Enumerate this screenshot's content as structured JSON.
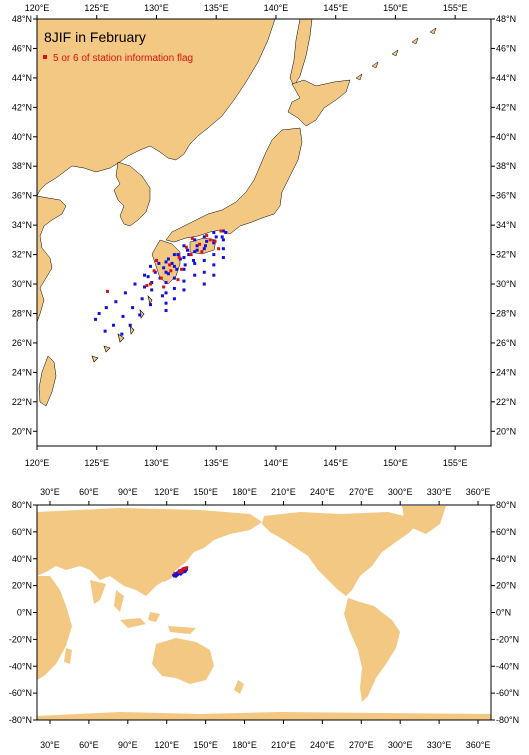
{
  "colors": {
    "land": "#f2c882",
    "ocean": "#ffffff",
    "blue_points": "#1010e0",
    "red_points": "#e01010",
    "frame": "#000000"
  },
  "regional_map": {
    "title": "8JIF in February",
    "legend_label": "5 or 6 of station information flag",
    "x_ticks": [
      "120°E",
      "125°E",
      "130°E",
      "135°E",
      "140°E",
      "145°E",
      "150°E",
      "155°E"
    ],
    "y_ticks_left": [
      "48°N",
      "46°N",
      "44°N",
      "42°N",
      "40°N",
      "38°N",
      "36°N",
      "34°N",
      "32°N",
      "30°N",
      "28°N",
      "26°N",
      "24°N",
      "22°N",
      "20°N"
    ],
    "lon_range": [
      120,
      158
    ],
    "lat_range": [
      19,
      48
    ]
  },
  "global_map": {
    "x_ticks": [
      "30°E",
      "60°E",
      "90°E",
      "120°E",
      "150°E",
      "180°E",
      "210°E",
      "240°E",
      "270°E",
      "300°E",
      "330°E",
      "360°E"
    ],
    "y_ticks": [
      "80°N",
      "60°N",
      "40°N",
      "20°N",
      "0°N",
      "-20°N",
      "-40°N",
      "-60°N",
      "-80°N"
    ],
    "lon_range": [
      20,
      370
    ],
    "lat_range": [
      -80,
      80
    ]
  },
  "chart_data": {
    "type": "scatter",
    "blue_tracks": [
      {
        "lon": [
          129.5,
          130.2,
          131.0,
          131.8,
          132.6,
          133.4,
          134.2,
          135.0,
          135.8
        ],
        "lat": [
          31.2,
          31.4,
          31.7,
          32.0,
          32.3,
          32.6,
          32.9,
          33.2,
          33.5
        ]
      },
      {
        "lon": [
          129.3,
          129.9,
          130.6,
          131.3,
          132.0,
          132.7,
          133.4,
          134.1,
          134.8,
          135.5
        ],
        "lat": [
          30.5,
          30.8,
          31.1,
          31.4,
          31.7,
          32.0,
          32.3,
          32.6,
          32.9,
          33.2
        ]
      },
      {
        "lon": [
          129.0,
          129.6,
          130.3,
          131.0,
          131.7,
          132.4,
          133.1
        ],
        "lat": [
          29.8,
          30.1,
          30.4,
          30.7,
          31.0,
          31.3,
          31.6
        ]
      },
      {
        "lon": [
          130.8,
          130.8,
          130.8,
          130.8,
          130.8,
          130.8
        ],
        "lat": [
          31.5,
          30.8,
          30.1,
          29.4,
          28.7,
          28.2
        ]
      },
      {
        "lon": [
          131.5,
          131.5,
          131.5,
          131.5,
          131.5
        ],
        "lat": [
          32.0,
          31.2,
          30.4,
          29.7,
          29.0
        ]
      },
      {
        "lon": [
          132.3,
          132.3,
          132.3,
          132.3,
          132.3
        ],
        "lat": [
          32.6,
          31.8,
          31.0,
          30.2,
          29.6
        ]
      },
      {
        "lon": [
          133.2,
          133.2,
          133.2,
          133.2
        ],
        "lat": [
          33.0,
          32.2,
          31.4,
          30.6
        ]
      },
      {
        "lon": [
          134.0,
          134.0,
          134.0,
          134.0,
          134.0
        ],
        "lat": [
          33.2,
          32.4,
          31.6,
          30.8,
          30.0
        ]
      },
      {
        "lon": [
          134.8,
          134.8,
          134.8,
          134.8,
          134.8
        ],
        "lat": [
          33.5,
          32.8,
          32.0,
          31.3,
          30.6
        ]
      },
      {
        "lon": [
          135.6,
          135.6,
          135.6,
          135.6
        ],
        "lat": [
          33.6,
          33.0,
          32.4,
          31.8
        ]
      },
      {
        "lon": [
          129.0,
          128.2,
          127.4,
          126.6,
          125.8,
          125.2,
          124.9
        ],
        "lat": [
          30.6,
          30.0,
          29.4,
          28.8,
          28.4,
          28.0,
          27.6
        ]
      },
      {
        "lon": [
          129.6,
          128.8,
          128.0,
          127.2,
          126.4,
          125.7
        ],
        "lat": [
          29.6,
          29.0,
          28.4,
          27.8,
          27.2,
          26.8
        ]
      },
      {
        "lon": [
          130.5,
          129.5,
          128.6,
          127.8,
          127.1
        ],
        "lat": [
          29.2,
          28.6,
          27.9,
          27.2,
          26.6
        ]
      }
    ],
    "red_points": {
      "lon": [
        129.8,
        130.4,
        131.1,
        131.9,
        132.5,
        133.0,
        133.6,
        134.2,
        134.9,
        135.4,
        129.5,
        130.6,
        131.8,
        132.9,
        133.8,
        134.5,
        135.2,
        131.2,
        132.1,
        125.9,
        130.0,
        129.2
      ],
      "lat": [
        30.9,
        30.4,
        31.3,
        31.8,
        32.5,
        33.1,
        32.7,
        33.3,
        32.9,
        33.6,
        30.0,
        29.8,
        30.3,
        32.0,
        32.2,
        33.0,
        32.4,
        30.9,
        31.0,
        29.5,
        31.6,
        29.9
      ]
    }
  }
}
